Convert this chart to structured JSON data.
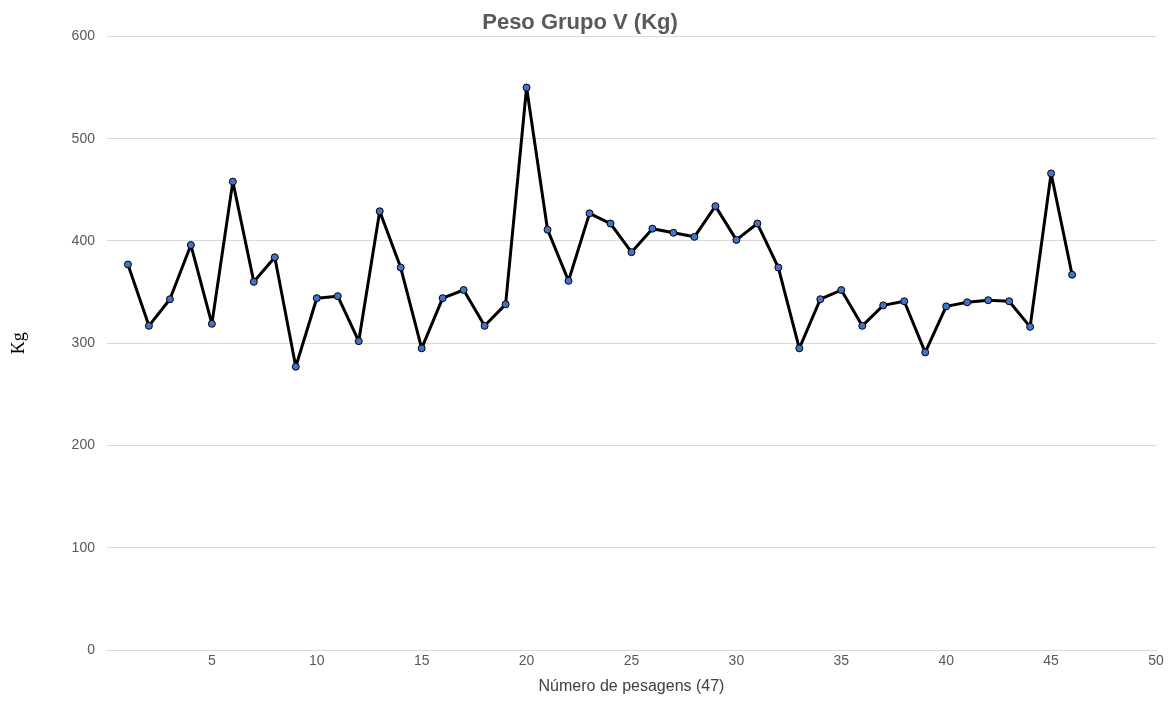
{
  "chart_data": {
    "type": "line",
    "title": "Peso Grupo V (Kg)",
    "xlabel": "Número de pesagens (47)",
    "ylabel": "Kg",
    "x": [
      1,
      2,
      3,
      4,
      5,
      6,
      7,
      8,
      9,
      10,
      11,
      12,
      13,
      14,
      15,
      16,
      17,
      18,
      19,
      20,
      21,
      22,
      23,
      24,
      25,
      26,
      27,
      28,
      29,
      30,
      31,
      32,
      33,
      34,
      35,
      36,
      37,
      38,
      39,
      40,
      41,
      42,
      43,
      44,
      45,
      46
    ],
    "series": [
      {
        "color": "#4472c4",
        "values": [
          377,
          317,
          343,
          396,
          319,
          458,
          360,
          384,
          277,
          344,
          346,
          302,
          429,
          374,
          295,
          344,
          352,
          317,
          338,
          550,
          411,
          361,
          427,
          417,
          389,
          412,
          408,
          404,
          434,
          401,
          417,
          374,
          295,
          343,
          352,
          317,
          337,
          341,
          291,
          336,
          340,
          342,
          341,
          316,
          466,
          367
        ]
      }
    ],
    "xlim": [
      0,
      50
    ],
    "xticks": [
      5,
      10,
      15,
      20,
      25,
      30,
      35,
      40,
      45,
      50
    ],
    "ylim": [
      0,
      600
    ],
    "yticks": [
      0,
      100,
      200,
      300,
      400,
      500,
      600
    ],
    "grid": "y",
    "legend": false,
    "marker": "circle",
    "line_style": "solid"
  }
}
